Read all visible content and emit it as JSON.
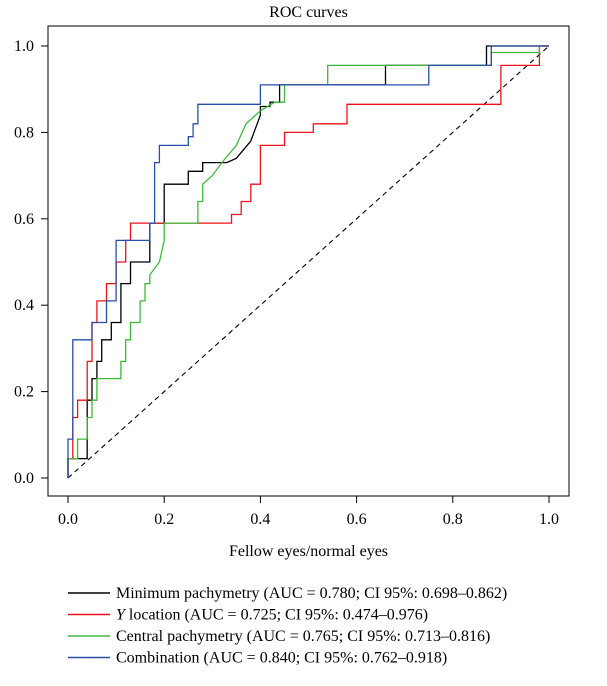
{
  "chart_data": {
    "type": "line",
    "title": "ROC curves",
    "xlabel": "Fellow eyes/normal eyes",
    "ylabel": "",
    "xlim": [
      0,
      1
    ],
    "ylim": [
      0,
      1
    ],
    "x_ticks": [
      "0.0",
      "0.2",
      "0.4",
      "0.6",
      "0.8",
      "1.0"
    ],
    "y_ticks": [
      "0.0",
      "0.2",
      "0.4",
      "0.6",
      "0.8",
      "1.0"
    ],
    "grid": false,
    "legend_position": "bottom",
    "reference_line": {
      "style": "dashed",
      "color": "#000000",
      "points": [
        [
          0,
          0
        ],
        [
          1,
          1
        ]
      ]
    },
    "series": [
      {
        "name": "Minimum pachymetry (AUC = 0.780; CI 95%: 0.698–0.862)",
        "legend_parts": [
          {
            "text": "Minimum pachymetry (AUC = 0.780; CI 95%: 0.698–0.862)",
            "italic": false
          }
        ],
        "color": "#000000",
        "x": [
          0,
          0,
          0.04,
          0.04,
          0.05,
          0.05,
          0.06,
          0.06,
          0.07,
          0.07,
          0.09,
          0.09,
          0.11,
          0.11,
          0.13,
          0.13,
          0.17,
          0.17,
          0.2,
          0.2,
          0.25,
          0.25,
          0.28,
          0.28,
          0.33,
          0.35,
          0.38,
          0.4,
          0.4,
          0.42,
          0.42,
          0.44,
          0.44,
          0.66,
          0.66,
          0.87,
          0.87,
          1.0
        ],
        "y": [
          0,
          0.045,
          0.045,
          0.18,
          0.18,
          0.23,
          0.23,
          0.27,
          0.27,
          0.32,
          0.32,
          0.36,
          0.36,
          0.45,
          0.45,
          0.5,
          0.5,
          0.59,
          0.59,
          0.68,
          0.68,
          0.71,
          0.71,
          0.73,
          0.73,
          0.74,
          0.78,
          0.84,
          0.86,
          0.86,
          0.87,
          0.87,
          0.91,
          0.91,
          0.955,
          0.955,
          1.0,
          1.0
        ]
      },
      {
        "name": "Y location (AUC = 0.725; CI 95%: 0.474–0.976)",
        "legend_parts": [
          {
            "text": "Y",
            "italic": true
          },
          {
            "text": " location (AUC = 0.725; CI 95%: 0.474–0.976)",
            "italic": false
          }
        ],
        "color": "#e8141a",
        "x": [
          0,
          0,
          0.01,
          0.01,
          0.02,
          0.02,
          0.04,
          0.04,
          0.05,
          0.05,
          0.06,
          0.06,
          0.08,
          0.08,
          0.1,
          0.1,
          0.12,
          0.12,
          0.13,
          0.13,
          0.34,
          0.34,
          0.36,
          0.36,
          0.38,
          0.38,
          0.4,
          0.4,
          0.42,
          0.42,
          0.45,
          0.45,
          0.51,
          0.51,
          0.58,
          0.58,
          0.9,
          0.9,
          0.95,
          0.95,
          0.98,
          0.98,
          1.0
        ],
        "y": [
          0,
          0.045,
          0.045,
          0.14,
          0.14,
          0.18,
          0.18,
          0.27,
          0.27,
          0.36,
          0.36,
          0.41,
          0.41,
          0.45,
          0.45,
          0.5,
          0.5,
          0.55,
          0.55,
          0.59,
          0.59,
          0.61,
          0.61,
          0.64,
          0.64,
          0.68,
          0.68,
          0.77,
          0.77,
          0.77,
          0.77,
          0.8,
          0.8,
          0.82,
          0.82,
          0.865,
          0.865,
          0.955,
          0.955,
          0.955,
          0.955,
          1.0,
          1.0
        ]
      },
      {
        "name": "Central pachymetry (AUC = 0.765; CI 95%: 0.713–0.816)",
        "legend_parts": [
          {
            "text": "Central pachymetry (AUC = 0.765; CI 95%: 0.713–0.816)",
            "italic": false
          }
        ],
        "color": "#3fb83a",
        "x": [
          0,
          0,
          0.02,
          0.02,
          0.04,
          0.04,
          0.05,
          0.05,
          0.06,
          0.06,
          0.11,
          0.11,
          0.12,
          0.12,
          0.13,
          0.13,
          0.15,
          0.15,
          0.16,
          0.16,
          0.17,
          0.17,
          0.19,
          0.2,
          0.2,
          0.27,
          0.27,
          0.28,
          0.28,
          0.3,
          0.32,
          0.35,
          0.37,
          0.4,
          0.43,
          0.43,
          0.45,
          0.45,
          0.54,
          0.54,
          0.88,
          0.88,
          0.98,
          0.98
        ],
        "y": [
          0,
          0.045,
          0.045,
          0.09,
          0.09,
          0.14,
          0.14,
          0.18,
          0.18,
          0.23,
          0.23,
          0.27,
          0.27,
          0.32,
          0.32,
          0.36,
          0.36,
          0.41,
          0.41,
          0.45,
          0.45,
          0.47,
          0.5,
          0.55,
          0.59,
          0.59,
          0.64,
          0.64,
          0.68,
          0.7,
          0.73,
          0.77,
          0.82,
          0.85,
          0.87,
          0.87,
          0.87,
          0.91,
          0.91,
          0.955,
          0.955,
          0.985,
          0.985,
          1.0
        ]
      },
      {
        "name": "Combination (AUC = 0.840; CI 95%: 0.762–0.918)",
        "legend_parts": [
          {
            "text": "Combination (AUC = 0.840; CI 95%: 0.762–0.918)",
            "italic": false
          }
        ],
        "color": "#2a4fa8",
        "x": [
          0,
          0,
          0.01,
          0.01,
          0.05,
          0.05,
          0.08,
          0.08,
          0.1,
          0.1,
          0.11,
          0.11,
          0.17,
          0.17,
          0.18,
          0.18,
          0.19,
          0.19,
          0.25,
          0.25,
          0.26,
          0.26,
          0.27,
          0.27,
          0.4,
          0.4,
          0.75,
          0.75,
          0.88,
          0.88,
          1.0
        ],
        "y": [
          0,
          0.09,
          0.09,
          0.32,
          0.32,
          0.36,
          0.36,
          0.41,
          0.41,
          0.55,
          0.55,
          0.55,
          0.55,
          0.59,
          0.59,
          0.73,
          0.73,
          0.77,
          0.77,
          0.79,
          0.79,
          0.82,
          0.82,
          0.865,
          0.865,
          0.91,
          0.91,
          0.955,
          0.955,
          1.0,
          1.0
        ]
      }
    ]
  }
}
